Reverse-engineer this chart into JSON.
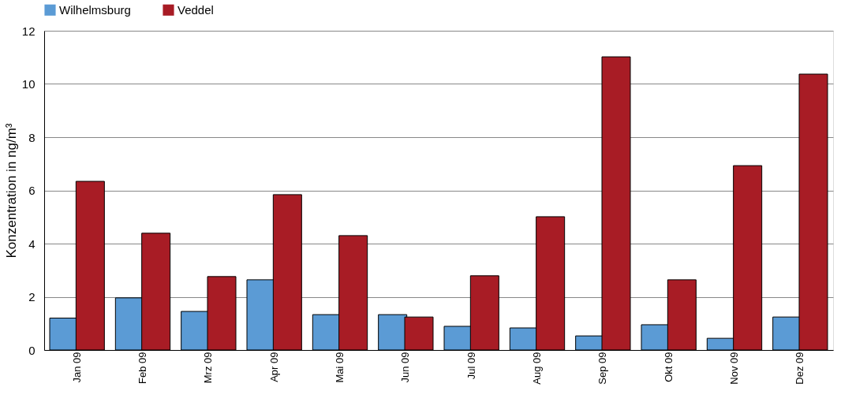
{
  "chart_data": {
    "type": "bar",
    "ylabel": "Konzentration in ng/m³",
    "categories": [
      "Jan 09",
      "Feb 09",
      "Mrz 09",
      "Apr 09",
      "Mai 09",
      "Jun 09",
      "Jul 09",
      "Aug 09",
      "Sep 09",
      "Okt 09",
      "Nov 09",
      "Dez 09"
    ],
    "series": [
      {
        "name": "Wilhelmsburg",
        "color": "#5b9bd5",
        "values": [
          1.2,
          1.96,
          1.45,
          2.64,
          1.33,
          1.33,
          0.89,
          0.83,
          0.53,
          0.95,
          0.44,
          1.24
        ]
      },
      {
        "name": "Veddel",
        "color": "#a81c25",
        "values": [
          6.34,
          4.39,
          2.76,
          5.84,
          4.3,
          1.24,
          2.79,
          5.01,
          11.02,
          2.64,
          6.93,
          10.37
        ]
      }
    ],
    "ylim": [
      0,
      12
    ],
    "yticks": [
      0,
      2,
      4,
      6,
      8,
      10,
      12
    ],
    "grid": "y",
    "legend": "top left"
  }
}
